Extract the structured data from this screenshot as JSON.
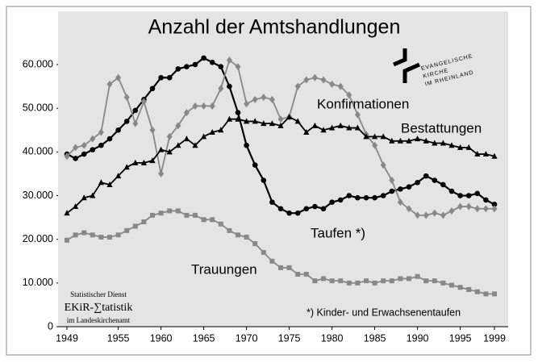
{
  "chart_data": {
    "type": "line",
    "title": "Anzahl der Amtshandlungen",
    "x": [
      1949,
      1950,
      1951,
      1952,
      1953,
      1954,
      1955,
      1956,
      1957,
      1958,
      1959,
      1960,
      1961,
      1962,
      1963,
      1964,
      1965,
      1966,
      1967,
      1968,
      1969,
      1970,
      1971,
      1972,
      1973,
      1974,
      1975,
      1976,
      1977,
      1978,
      1979,
      1980,
      1981,
      1982,
      1983,
      1984,
      1985,
      1986,
      1987,
      1988,
      1989,
      1990,
      1991,
      1992,
      1993,
      1994,
      1995,
      1996,
      1997,
      1998,
      1999
    ],
    "series": [
      {
        "name": "Taufen *)",
        "color": "#000000",
        "marker": "circle",
        "values": [
          39500,
          38500,
          39500,
          40500,
          41500,
          43000,
          45000,
          47000,
          49500,
          52000,
          54500,
          57000,
          57000,
          59000,
          59500,
          60000,
          61500,
          60500,
          59500,
          55000,
          49000,
          41500,
          37000,
          33500,
          28500,
          27000,
          26000,
          26000,
          27000,
          27500,
          27000,
          28500,
          29000,
          30000,
          29500,
          29500,
          29500,
          30000,
          31000,
          31500,
          32000,
          33000,
          34500,
          33500,
          32500,
          31000,
          30000,
          30000,
          30500,
          29000,
          28000
        ]
      },
      {
        "name": "Konfirmationen",
        "color": "#888888",
        "marker": "diamond",
        "values": [
          39000,
          41000,
          41500,
          43000,
          44500,
          55500,
          57000,
          52500,
          46500,
          51500,
          45000,
          35000,
          43500,
          46000,
          49000,
          50500,
          50500,
          50500,
          54500,
          61000,
          59500,
          51000,
          52000,
          52500,
          52000,
          47500,
          48000,
          55000,
          56500,
          57000,
          56500,
          55500,
          55000,
          53000,
          48500,
          44000,
          41500,
          37000,
          33500,
          28500,
          27000,
          25500,
          25500,
          26000,
          25500,
          26500,
          27500,
          27500,
          27000,
          27000,
          27000
        ]
      },
      {
        "name": "Bestattungen",
        "color": "#000000",
        "marker": "triangle",
        "values": [
          26000,
          27500,
          29500,
          30000,
          33000,
          32500,
          34500,
          36500,
          37500,
          37500,
          38000,
          40500,
          40000,
          41500,
          43000,
          41500,
          43500,
          44500,
          45000,
          47500,
          47500,
          47000,
          47000,
          46500,
          46500,
          46000,
          48000,
          47000,
          44500,
          46000,
          45000,
          45500,
          46000,
          45500,
          45500,
          43500,
          43500,
          43500,
          42500,
          42500,
          42500,
          43000,
          42500,
          42000,
          42000,
          41500,
          41000,
          41000,
          39500,
          39500,
          39000
        ]
      },
      {
        "name": "Trauungen",
        "color": "#888888",
        "marker": "square",
        "values": [
          19800,
          21000,
          21500,
          21000,
          20500,
          20500,
          21000,
          22000,
          23000,
          24000,
          25500,
          26000,
          26500,
          26500,
          25500,
          25500,
          24500,
          24500,
          23500,
          22000,
          21000,
          20500,
          19000,
          17000,
          15000,
          13500,
          13500,
          12000,
          12000,
          10500,
          11000,
          10500,
          10500,
          10000,
          10000,
          10500,
          10000,
          10500,
          10500,
          11000,
          11000,
          11500,
          10500,
          10500,
          10000,
          9500,
          9000,
          8500,
          8000,
          7500,
          7500
        ]
      }
    ],
    "xlim": [
      1949,
      1999
    ],
    "xticks": [
      1949,
      1955,
      1960,
      1965,
      1970,
      1975,
      1980,
      1985,
      1990,
      1995,
      1999
    ],
    "ylim": [
      0,
      60000
    ],
    "yticks": [
      0,
      {
        "value": 10000,
        "label": "10.000"
      },
      {
        "value": 20000,
        "label": "20.000"
      },
      {
        "value": 30000,
        "label": "30.000"
      },
      {
        "value": 40000,
        "label": "40.000"
      },
      {
        "value": 50000,
        "label": "50.000"
      },
      {
        "value": 60000,
        "label": "60.000"
      }
    ],
    "footnote": "*) Kinder- und Erwachsenentaufen",
    "logo": [
      "EVANGELISCHE",
      "KIRCHE",
      "IM RHEINLAND"
    ],
    "source": [
      "Statistischer Dienst",
      "EKiR-∑tatistik",
      "im Landeskirchenamt"
    ]
  }
}
